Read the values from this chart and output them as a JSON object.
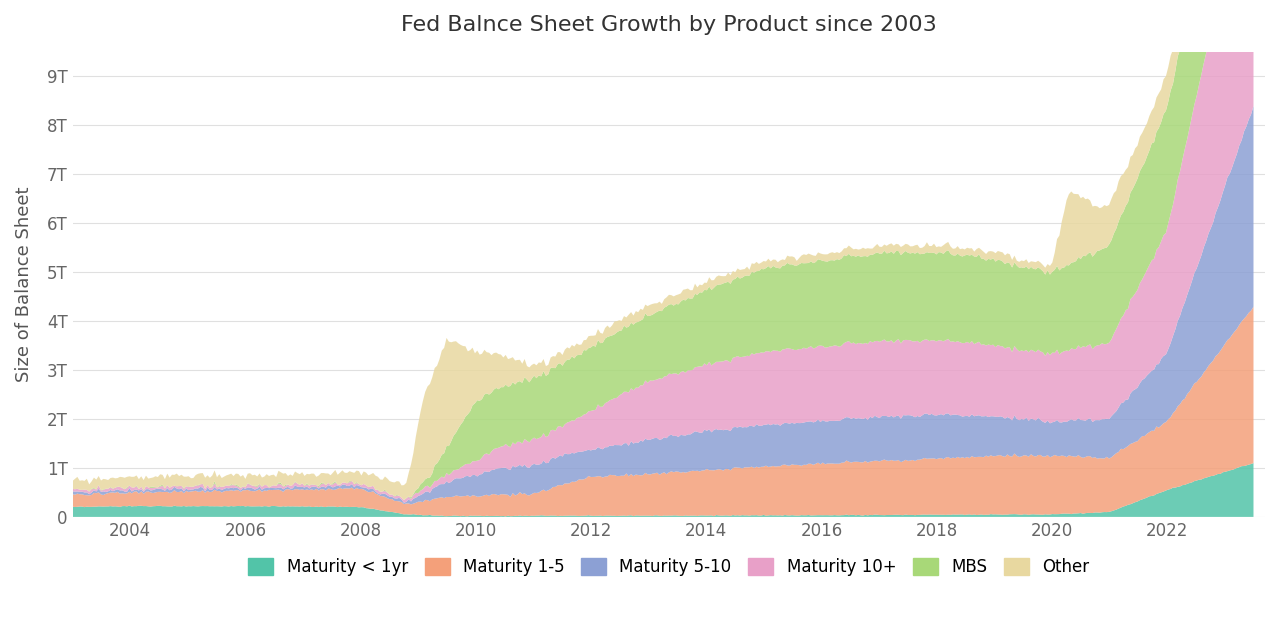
{
  "title": "Fed Balnce Sheet Growth by Product since 2003",
  "ylabel": "Size of Balance Sheet",
  "colors": {
    "maturity_lt1": "#52c4a8",
    "maturity_1_5": "#f4a07a",
    "maturity_5_10": "#8ca0d4",
    "maturity_10plus": "#e8a0c8",
    "mbs": "#a8d878",
    "other": "#e8d8a0"
  },
  "legend_labels": [
    "Maturity < 1yr",
    "Maturity 1-5",
    "Maturity 5-10",
    "Maturity 10+",
    "MBS",
    "Other"
  ],
  "background_color": "#ffffff",
  "ylim": [
    0,
    9500000000000.0
  ],
  "yticks": [
    0,
    1000000000000.0,
    2000000000000.0,
    3000000000000.0,
    4000000000000.0,
    5000000000000.0,
    6000000000000.0,
    7000000000000.0,
    8000000000000.0,
    9000000000000.0
  ],
  "ytick_labels": [
    "0",
    "1T",
    "2T",
    "3T",
    "4T",
    "5T",
    "6T",
    "7T",
    "8T",
    "9T"
  ],
  "xticks": [
    2004,
    2006,
    2008,
    2010,
    2012,
    2014,
    2016,
    2018,
    2020,
    2022
  ],
  "xlim": [
    2003.0,
    2023.7
  ]
}
